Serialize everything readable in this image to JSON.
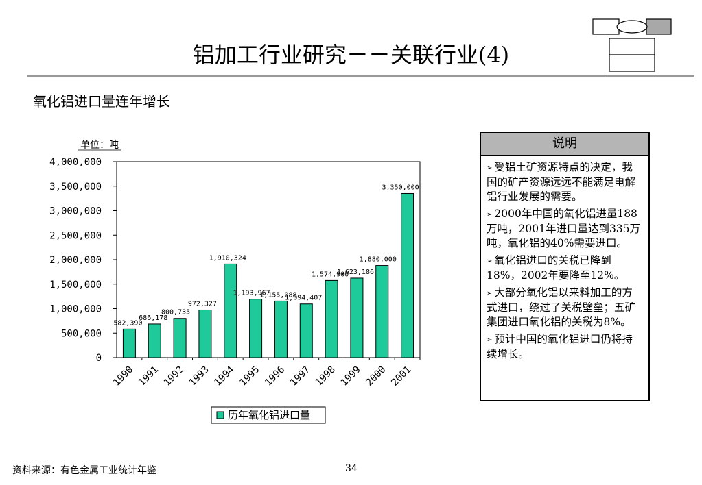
{
  "header": {
    "title": "铝加工行业研究－－关联行业(4)",
    "subtitle": "氧化铝进口量连年增长"
  },
  "chart_data": {
    "type": "bar",
    "unit_label": "单位：吨",
    "categories": [
      "1990",
      "1991",
      "1992",
      "1993",
      "1994",
      "1995",
      "1996",
      "1997",
      "1998",
      "1999",
      "2000",
      "2001"
    ],
    "series": [
      {
        "name": "历年氧化铝进口量",
        "values": [
          582390,
          686178,
          800735,
          972327,
          1910324,
          1193967,
          1155088,
          1094407,
          1574900,
          1623186,
          1880000,
          3350000
        ],
        "labels": [
          "582,390",
          "686,178",
          "800,735",
          "972,327",
          "1,910,324",
          "1,193,967",
          "1,155,088",
          "1,094,407",
          "1,574,900",
          "1,623,186",
          "1,880,000",
          "3,350,000"
        ],
        "color": "#1ec99a"
      }
    ],
    "yticks": [
      "4,000,000",
      "3,500,000",
      "3,000,000",
      "2,500,000",
      "2,000,000",
      "1,500,000",
      "1,000,000",
      "500,000",
      "0"
    ],
    "ylim": [
      0,
      4000000
    ],
    "legend_position": "bottom",
    "grid": false
  },
  "sidebar": {
    "header": "说明",
    "bullets": [
      "受铝土矿资源特点的决定，我国的矿产资源远远不能满足电解铝行业发展的需要。",
      "2000年中国的氧化铝进量188万吨，2001年进口量达到335万吨，氧化铝的40%需要进口。",
      "氧化铝进口的关税已降到18%，2002年要降至12%。",
      "大部分氧化铝以来料加工的方式进口，绕过了关税壁垒；五矿集团进口氧化铝的关税为8%。",
      "预计中国的氧化铝进口仍将持续增长。"
    ]
  },
  "footer": {
    "source": "资料来源：有色金属工业统计年鉴",
    "page": "34"
  }
}
